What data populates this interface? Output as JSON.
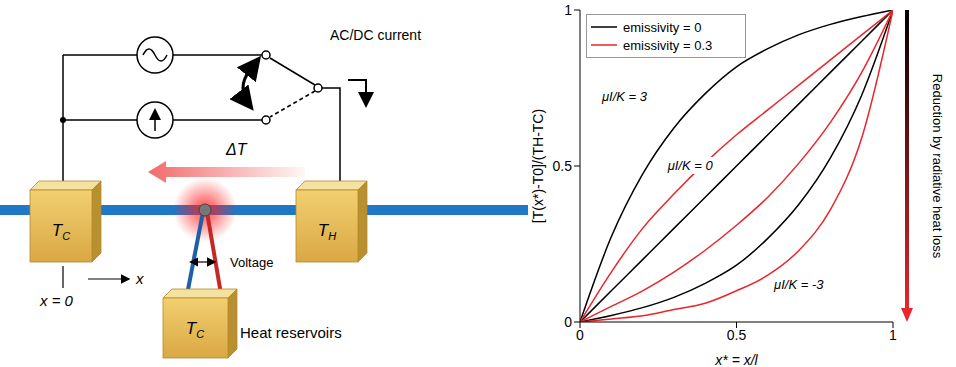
{
  "diagram": {
    "current_label": "AC/DC current",
    "delta_t": "ΔT",
    "reservoirs": [
      {
        "main": "T",
        "sub": "C"
      },
      {
        "main": "T",
        "sub": "H"
      },
      {
        "main": "T",
        "sub": "C"
      }
    ],
    "origin_label": "x = 0",
    "axis_label": "x",
    "voltage_label": "Voltage",
    "reservoir_label": "Heat reservoirs"
  },
  "chart_data": {
    "type": "line",
    "x_label": "x* = x/l",
    "y_label": "[T(x*)-T0]/(TH-TC)",
    "x": [
      0,
      0.1,
      0.2,
      0.3,
      0.4,
      0.5,
      0.6,
      0.7,
      0.8,
      0.9,
      1
    ],
    "xlim": [
      0,
      1
    ],
    "xticks": [
      0,
      0.5,
      1
    ],
    "ylim": [
      0,
      1
    ],
    "yticks": [
      0,
      0.5,
      1
    ],
    "grid": false,
    "legend": "upper left",
    "series": [
      {
        "name": "emissivity = 0",
        "color": "#000000",
        "label": "μI/K = 3",
        "values": [
          0,
          0.273,
          0.474,
          0.622,
          0.732,
          0.818,
          0.876,
          0.921,
          0.954,
          0.979,
          1
        ]
      },
      {
        "name": "emissivity = 0",
        "color": "#000000",
        "label": "μI/K = 0",
        "values": [
          0,
          0.1,
          0.2,
          0.3,
          0.4,
          0.5,
          0.6,
          0.7,
          0.8,
          0.9,
          1
        ]
      },
      {
        "name": "emissivity = 0",
        "color": "#000000",
        "label": "μI/K = -3",
        "values": [
          0,
          0.021,
          0.046,
          0.079,
          0.124,
          0.182,
          0.268,
          0.378,
          0.526,
          0.727,
          1
        ]
      },
      {
        "name": "emissivity = 0.3",
        "color": "#e8262b",
        "values": [
          0,
          0.16,
          0.3,
          0.41,
          0.51,
          0.6,
          0.68,
          0.76,
          0.84,
          0.92,
          1
        ]
      },
      {
        "name": "emissivity = 0.3",
        "color": "#e8262b",
        "values": [
          0,
          0.05,
          0.1,
          0.16,
          0.23,
          0.31,
          0.4,
          0.51,
          0.64,
          0.8,
          1
        ]
      },
      {
        "name": "emissivity = 0.3",
        "color": "#e8262b",
        "values": [
          0,
          0.01,
          0.02,
          0.04,
          0.06,
          0.1,
          0.15,
          0.23,
          0.36,
          0.59,
          1
        ]
      }
    ],
    "colorbar": {
      "label": "Reduction by radiative heat loss",
      "colors": [
        "#000000",
        "#e8262b"
      ]
    }
  }
}
